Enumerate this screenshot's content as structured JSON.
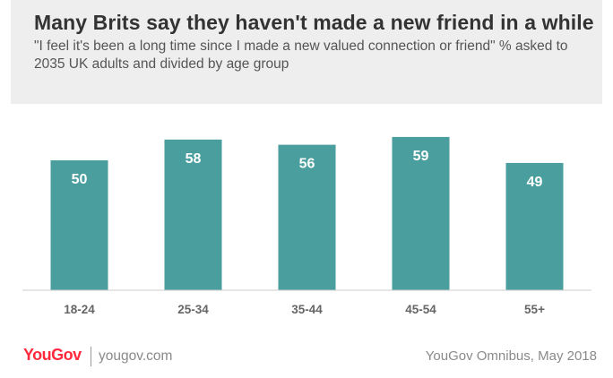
{
  "chart_data": {
    "type": "bar",
    "title": "Many Brits say they haven't made a new friend in a while",
    "subtitle": "\"I feel it's been a long time since I made a new valued connection or friend\" % asked to 2035 UK adults and divided by age group",
    "categories": [
      "18-24",
      "25-34",
      "35-44",
      "45-54",
      "55+"
    ],
    "values": [
      50,
      58,
      56,
      59,
      49
    ],
    "ylim": [
      0,
      85
    ],
    "grid": false,
    "bar_color": "#4a9e9e",
    "label_color": "#ffffff",
    "tick_color": "#666666",
    "baseline_color": "#cccccc"
  },
  "footer": {
    "brand": "YouGov",
    "url": "yougov.com",
    "source": "YouGov Omnibus, May 2018"
  }
}
